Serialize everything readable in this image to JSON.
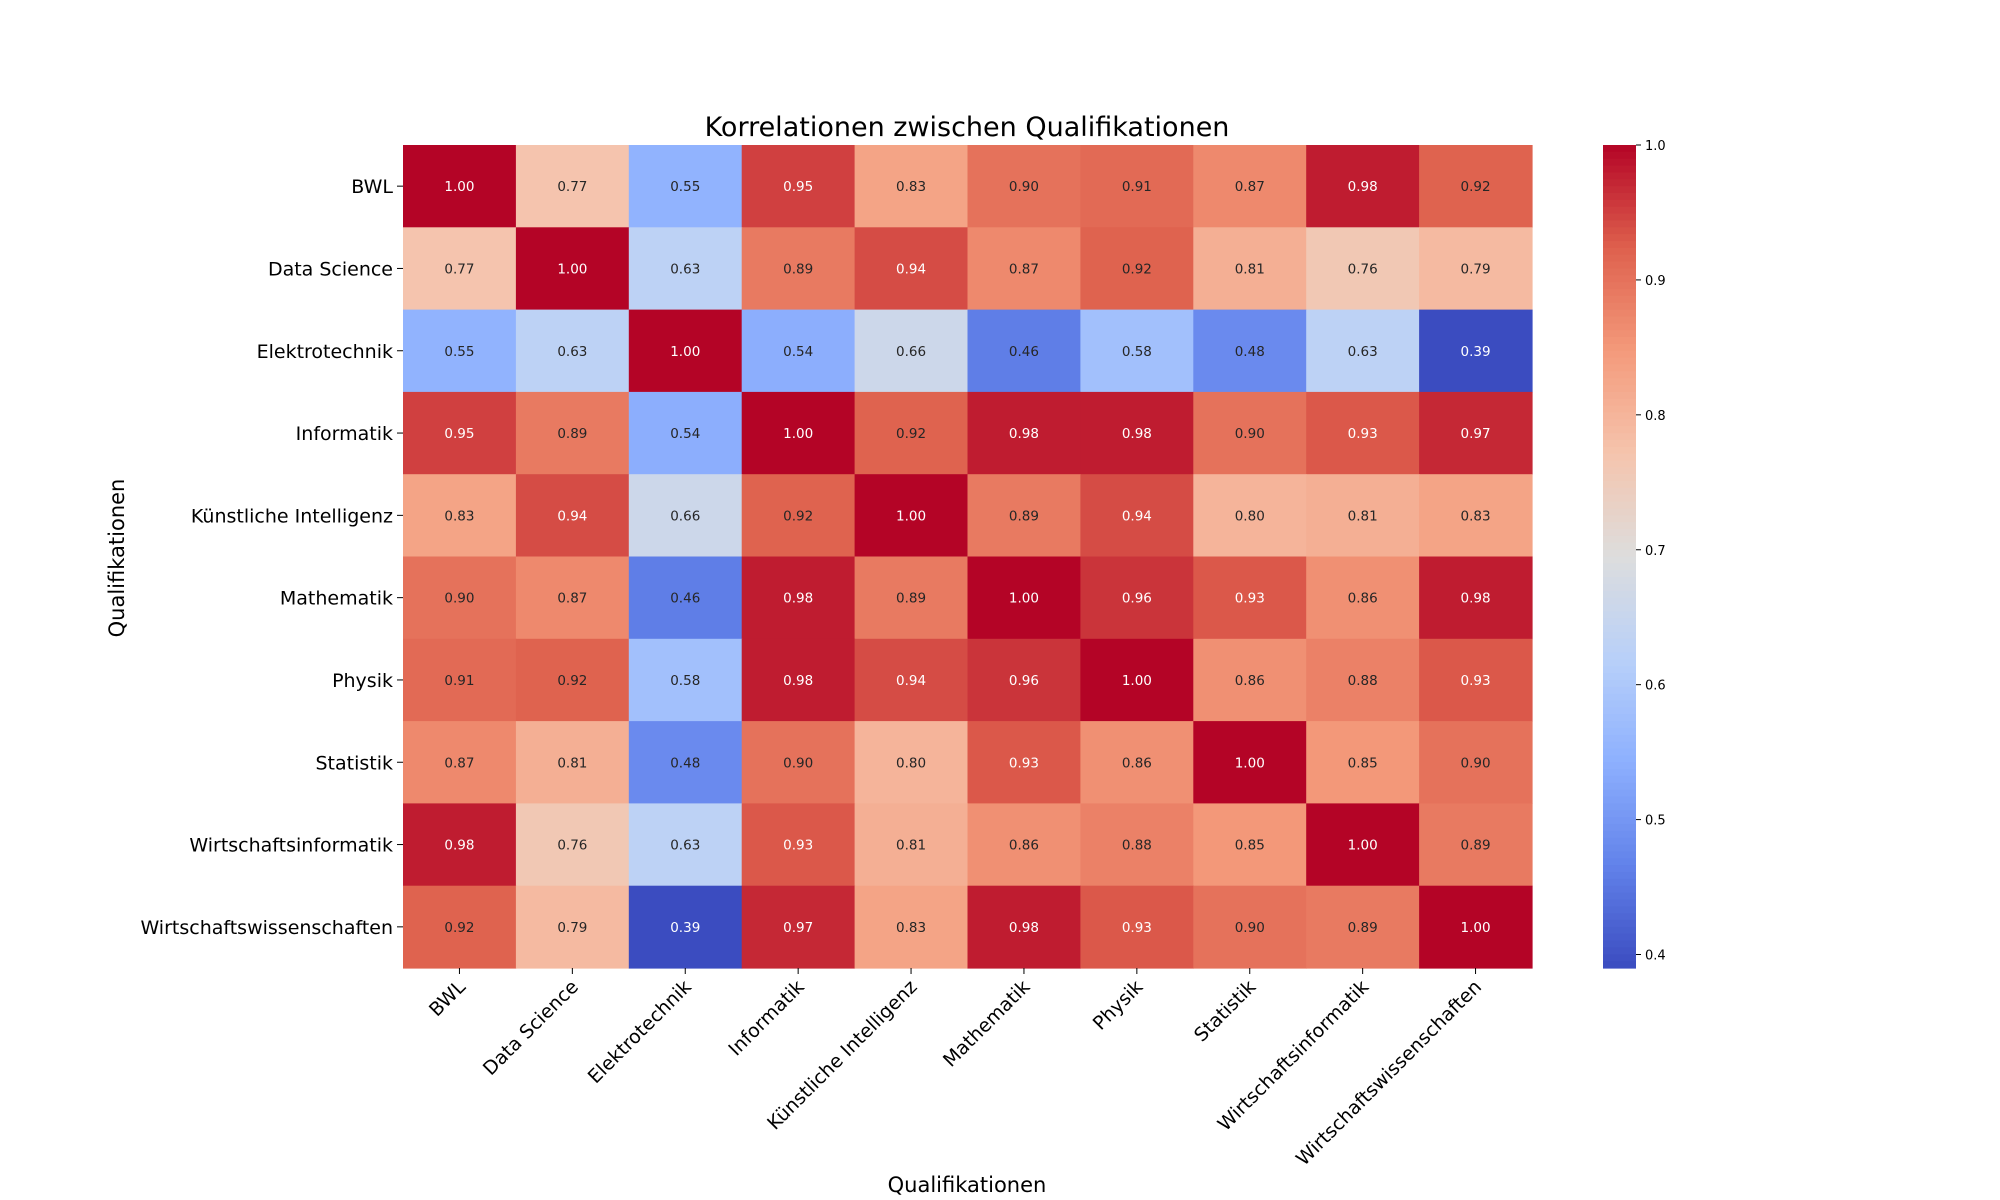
{
  "chart_data": {
    "type": "heatmap",
    "title": "Korrelationen zwischen Qualifikationen",
    "xlabel": "Qualifikationen",
    "ylabel": "Qualifikationen",
    "categories": [
      "BWL",
      "Data Science",
      "Elektrotechnik",
      "Informatik",
      "Künstliche Intelligenz",
      "Mathematik",
      "Physik",
      "Statistik",
      "Wirtschaftsinformatik",
      "Wirtschaftswissenschaften"
    ],
    "values": [
      [
        1.0,
        0.77,
        0.55,
        0.95,
        0.83,
        0.9,
        0.91,
        0.87,
        0.98,
        0.92
      ],
      [
        0.77,
        1.0,
        0.63,
        0.89,
        0.94,
        0.87,
        0.92,
        0.81,
        0.76,
        0.79
      ],
      [
        0.55,
        0.63,
        1.0,
        0.54,
        0.66,
        0.46,
        0.58,
        0.48,
        0.63,
        0.39
      ],
      [
        0.95,
        0.89,
        0.54,
        1.0,
        0.92,
        0.98,
        0.98,
        0.9,
        0.93,
        0.97
      ],
      [
        0.83,
        0.94,
        0.66,
        0.92,
        1.0,
        0.89,
        0.94,
        0.8,
        0.81,
        0.83
      ],
      [
        0.9,
        0.87,
        0.46,
        0.98,
        0.89,
        1.0,
        0.96,
        0.93,
        0.86,
        0.98
      ],
      [
        0.91,
        0.92,
        0.58,
        0.98,
        0.94,
        0.96,
        1.0,
        0.86,
        0.88,
        0.93
      ],
      [
        0.87,
        0.81,
        0.48,
        0.9,
        0.8,
        0.93,
        0.86,
        1.0,
        0.85,
        0.9
      ],
      [
        0.98,
        0.76,
        0.63,
        0.93,
        0.81,
        0.86,
        0.88,
        0.85,
        1.0,
        0.89
      ],
      [
        0.92,
        0.79,
        0.39,
        0.97,
        0.83,
        0.98,
        0.93,
        0.9,
        0.89,
        1.0
      ]
    ],
    "value_format": "2 decimals",
    "colormap": "coolwarm",
    "vmin": 0.39,
    "vmax": 1.0,
    "colorbar": {
      "ticks": [
        0.4,
        0.5,
        0.6,
        0.7,
        0.8,
        0.9,
        1.0
      ],
      "tick_labels": [
        "0.4",
        "0.5",
        "0.6",
        "0.7",
        "0.8",
        "0.9",
        "1.0"
      ],
      "placement": "right"
    },
    "grid": false,
    "legend": "none"
  }
}
